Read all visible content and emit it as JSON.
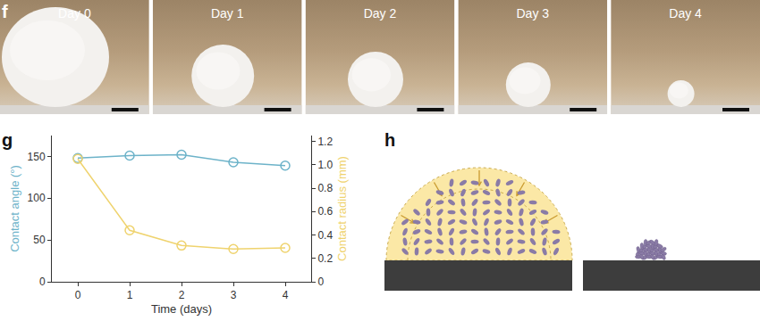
{
  "chart_data": {
    "type": "line",
    "panel_label": "g",
    "x": [
      0,
      1,
      2,
      3,
      4
    ],
    "xlim": [
      -0.5,
      4.5
    ],
    "xticks": [
      0,
      1,
      2,
      3,
      4
    ],
    "x_label": "Time (days)",
    "y_label": "Contact angle (°)",
    "y_label_color": "#6db3c9",
    "y2_label": "Contact radius (mm)",
    "y2_label_color": "#efd36e",
    "ylim": [
      0,
      175
    ],
    "yticks": [
      0,
      50,
      100,
      150
    ],
    "y2lim": [
      0,
      1.25
    ],
    "y2ticks": [
      0,
      0.2,
      0.4,
      0.6,
      0.8,
      {
        "value": 1,
        "label": "1.0"
      },
      1.2
    ],
    "grid": false,
    "series": [
      {
        "color": "#6db3c9",
        "marker": "circle-open",
        "values": [
          148,
          151,
          152,
          143,
          139
        ]
      },
      {
        "color": "#efd36e",
        "marker": "circle-open",
        "axis": "y2",
        "values": [
          1.05,
          0.44,
          0.31,
          0.28,
          0.29
        ]
      }
    ]
  },
  "photos": {
    "panel_label": "f",
    "labels": [
      "Day 0",
      "Day 1",
      "Day 2",
      "Day 3",
      "Day 4"
    ]
  },
  "diagram": {
    "panel_label": "h"
  }
}
